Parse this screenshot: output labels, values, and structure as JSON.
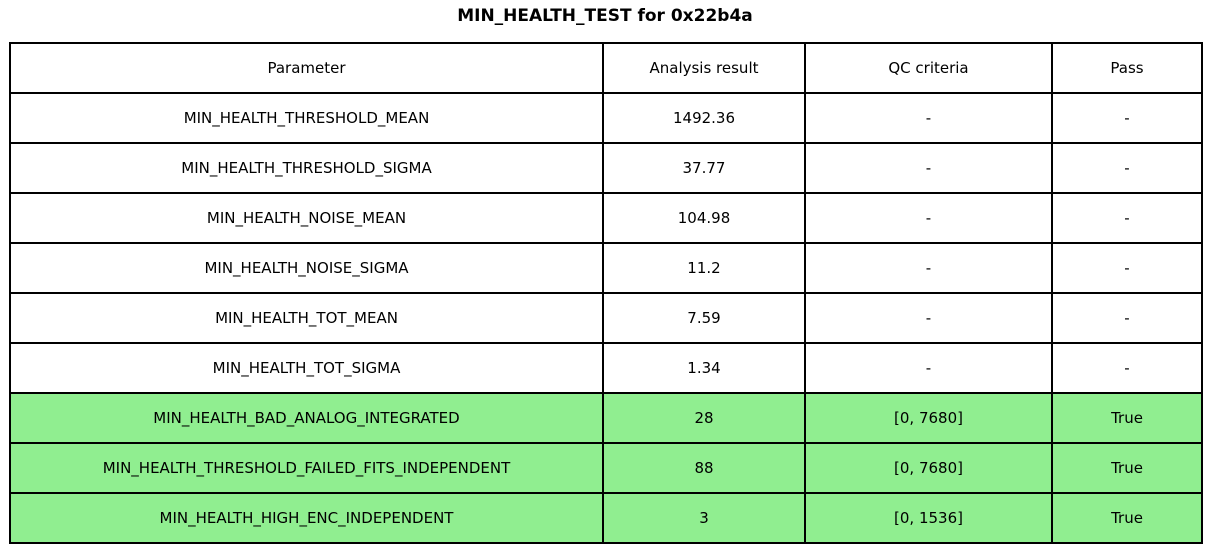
{
  "title": "MIN_HEALTH_TEST for 0x22b4a",
  "colors": {
    "pass_green": "#90ee90",
    "border": "#000000",
    "background": "#ffffff"
  },
  "table": {
    "columns": [
      "Parameter",
      "Analysis result",
      "QC criteria",
      "Pass"
    ],
    "rows": [
      {
        "cells": [
          "MIN_HEALTH_THRESHOLD_MEAN",
          "1492.36",
          "-",
          "-"
        ],
        "highlight": false
      },
      {
        "cells": [
          "MIN_HEALTH_THRESHOLD_SIGMA",
          "37.77",
          "-",
          "-"
        ],
        "highlight": false
      },
      {
        "cells": [
          "MIN_HEALTH_NOISE_MEAN",
          "104.98",
          "-",
          "-"
        ],
        "highlight": false
      },
      {
        "cells": [
          "MIN_HEALTH_NOISE_SIGMA",
          "11.2",
          "-",
          "-"
        ],
        "highlight": false
      },
      {
        "cells": [
          "MIN_HEALTH_TOT_MEAN",
          "7.59",
          "-",
          "-"
        ],
        "highlight": false
      },
      {
        "cells": [
          "MIN_HEALTH_TOT_SIGMA",
          "1.34",
          "-",
          "-"
        ],
        "highlight": false
      },
      {
        "cells": [
          "MIN_HEALTH_BAD_ANALOG_INTEGRATED",
          "28",
          "[0, 7680]",
          "True"
        ],
        "highlight": true
      },
      {
        "cells": [
          "MIN_HEALTH_THRESHOLD_FAILED_FITS_INDEPENDENT",
          "88",
          "[0, 7680]",
          "True"
        ],
        "highlight": true
      },
      {
        "cells": [
          "MIN_HEALTH_HIGH_ENC_INDEPENDENT",
          "3",
          "[0, 1536]",
          "True"
        ],
        "highlight": true
      }
    ]
  }
}
